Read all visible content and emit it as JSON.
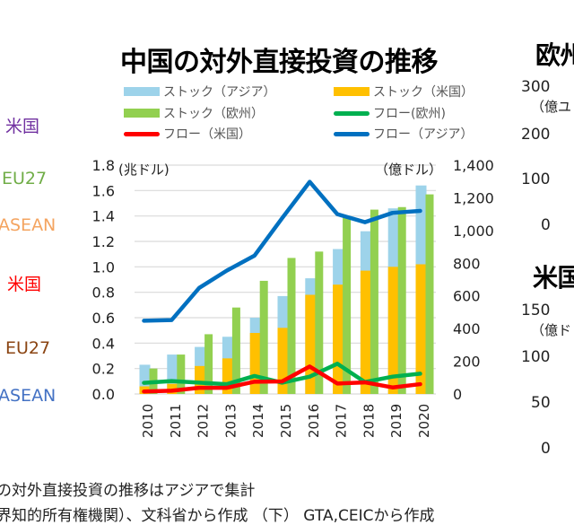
{
  "chart_data": {
    "type": "bar+line",
    "title": "中国の対外直接投資の推移",
    "left_unit": "(兆ドル)",
    "right_unit": "（億ドル）",
    "categories": [
      "2010",
      "2011",
      "2012",
      "2013",
      "2014",
      "2015",
      "2016",
      "2017",
      "2018",
      "2019",
      "2020"
    ],
    "left_ylim": [
      0,
      1.8
    ],
    "left_ticks": [
      "0.0",
      "0.2",
      "0.4",
      "0.6",
      "0.8",
      "1.0",
      "1.2",
      "1.4",
      "1.6",
      "1.8"
    ],
    "right_ylim": [
      0,
      1400
    ],
    "right_ticks": [
      "0",
      "200",
      "400",
      "600",
      "800",
      "1,000",
      "1,200",
      "1,400"
    ],
    "grid": true,
    "legend_position": "top",
    "series": [
      {
        "name": "ストック（アジア）",
        "kind": "bar",
        "axis": "left",
        "color": "#9dd3ea",
        "values": [
          0.23,
          0.31,
          0.37,
          0.45,
          0.6,
          0.77,
          0.91,
          1.14,
          1.28,
          1.46,
          1.64
        ]
      },
      {
        "name": "ストック（米国）",
        "kind": "bar",
        "axis": "left",
        "color": "#ffc000",
        "values": [
          0.06,
          0.08,
          0.22,
          0.28,
          0.48,
          0.52,
          0.78,
          0.86,
          0.97,
          1.0,
          1.02
        ]
      },
      {
        "name": "ストック（欧州）",
        "kind": "bar",
        "axis": "left",
        "color": "#92d050",
        "values": [
          0.2,
          0.31,
          0.47,
          0.68,
          0.89,
          1.07,
          1.12,
          1.4,
          1.45,
          1.47,
          1.57
        ]
      },
      {
        "name": "フロー(欧州)",
        "kind": "line",
        "axis": "right",
        "color": "#00b050",
        "values": [
          68,
          79,
          69,
          60,
          110,
          69,
          106,
          185,
          73,
          106,
          124
        ]
      },
      {
        "name": "フロー（米国）",
        "kind": "line",
        "axis": "right",
        "color": "#ff0000",
        "values": [
          15,
          20,
          38,
          38,
          75,
          77,
          168,
          64,
          71,
          40,
          60
        ]
      },
      {
        "name": "フロー（アジア）",
        "kind": "line",
        "axis": "right",
        "color": "#0070c0",
        "values": [
          448,
          452,
          649,
          755,
          846,
          1075,
          1298,
          1100,
          1051,
          1108,
          1120
        ]
      }
    ]
  },
  "left_labels": [
    {
      "text": "米国",
      "color": "#7030a0"
    },
    {
      "text": "EU27",
      "color": "#70ad47"
    },
    {
      "text": "ASEAN",
      "color": "#f4a460"
    },
    {
      "text": "米国",
      "color": "#ff0000"
    },
    {
      "text": "EU27",
      "color": "#8b4513"
    },
    {
      "text": "ASEAN",
      "color": "#4472c4"
    }
  ],
  "right_panel": {
    "europe_title": "欧州",
    "europe_unit": "（億ユ",
    "europe_ticks": [
      "300",
      "200",
      "100",
      "0"
    ],
    "us_title": "米国",
    "us_unit": "（億ド",
    "us_ticks": [
      "150",
      "100",
      "50",
      "0"
    ]
  },
  "notes": {
    "line1": "の対外直接投資の推移はアジアで集計",
    "line2": "界知的所有権機関）、文科省から作成 （下） GTA,CEICから作成"
  }
}
